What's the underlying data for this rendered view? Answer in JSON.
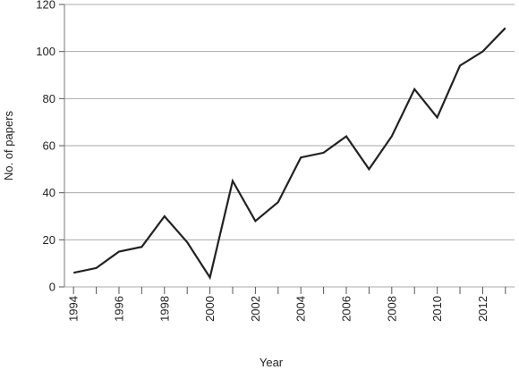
{
  "chart_data": {
    "type": "line",
    "title": "",
    "xlabel": "Year",
    "ylabel": "No. of papers",
    "ylim": [
      0,
      120
    ],
    "y_ticks": [
      0,
      20,
      40,
      60,
      80,
      100,
      120
    ],
    "x_tick_labels": [
      "1994",
      "1996",
      "1998",
      "2000",
      "2002",
      "2004",
      "2006",
      "2008",
      "2010",
      "2012"
    ],
    "grid": "horizontal",
    "line_color": "#222222",
    "grid_color": "#aaaaaa",
    "series": [
      {
        "x": [
          1994,
          1995,
          1996,
          1997,
          1998,
          1999,
          2000,
          2001,
          2002,
          2003,
          2004,
          2005,
          2006,
          2007,
          2008,
          2009,
          2010,
          2011,
          2012,
          2013
        ],
        "values": [
          6,
          8,
          15,
          17,
          30,
          19,
          4,
          45,
          28,
          36,
          55,
          57,
          64,
          50,
          64,
          84,
          72,
          94,
          100,
          110
        ]
      }
    ]
  }
}
